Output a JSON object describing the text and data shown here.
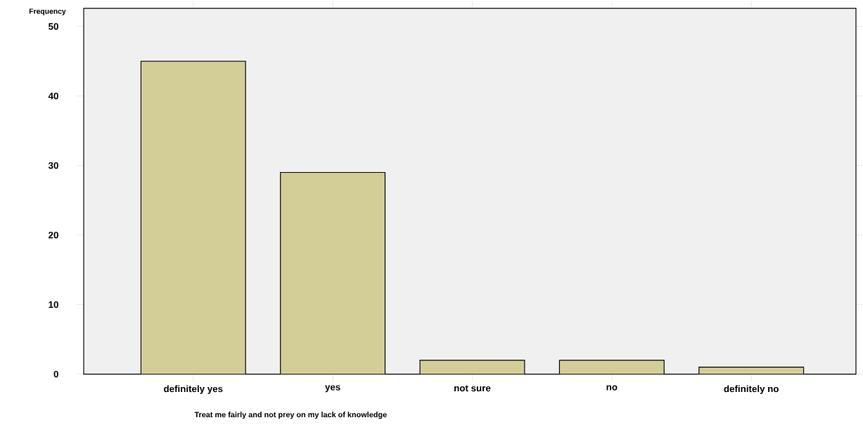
{
  "chart_data": {
    "type": "bar",
    "xlabel": "Treat me fairly and not prey on my lack of knowledge",
    "ylabel": "Frequency",
    "categories": [
      "definitely yes",
      "yes",
      "not sure",
      "no",
      "definitely no"
    ],
    "values": [
      45,
      29,
      2,
      2,
      1
    ],
    "color": "#d3cd98",
    "ylim": [
      0,
      52.6
    ],
    "yticks": [
      0,
      10,
      20,
      30,
      40,
      50
    ],
    "grid": false
  }
}
